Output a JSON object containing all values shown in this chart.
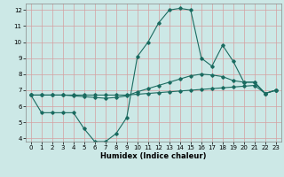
{
  "xlabel": "Humidex (Indice chaleur)",
  "bg_color": "#cce8e6",
  "grid_color": "#d4a0a0",
  "line_color": "#1a6b60",
  "xlim": [
    -0.5,
    23.5
  ],
  "ylim": [
    3.8,
    12.4
  ],
  "xticks": [
    0,
    1,
    2,
    3,
    4,
    5,
    6,
    7,
    8,
    9,
    10,
    11,
    12,
    13,
    14,
    15,
    16,
    17,
    18,
    19,
    20,
    21,
    22,
    23
  ],
  "yticks": [
    4,
    5,
    6,
    7,
    8,
    9,
    10,
    11,
    12
  ],
  "line1_x": [
    0,
    1,
    2,
    3,
    4,
    5,
    6,
    7,
    8,
    9,
    10,
    11,
    12,
    13,
    14,
    15,
    16,
    17,
    18,
    19,
    20,
    21,
    22,
    23
  ],
  "line1_y": [
    6.7,
    6.7,
    6.7,
    6.7,
    6.7,
    6.7,
    6.7,
    6.7,
    6.7,
    6.7,
    6.75,
    6.8,
    6.85,
    6.9,
    6.95,
    7.0,
    7.05,
    7.1,
    7.15,
    7.2,
    7.25,
    7.3,
    6.8,
    7.0
  ],
  "line2_x": [
    0,
    1,
    2,
    3,
    4,
    5,
    6,
    7,
    8,
    9,
    10,
    11,
    12,
    13,
    14,
    15,
    16,
    17,
    18,
    19,
    20,
    21,
    22,
    23
  ],
  "line2_y": [
    6.7,
    6.7,
    6.7,
    6.7,
    6.65,
    6.6,
    6.55,
    6.5,
    6.55,
    6.65,
    6.9,
    7.1,
    7.3,
    7.5,
    7.7,
    7.9,
    8.0,
    7.95,
    7.85,
    7.6,
    7.5,
    7.5,
    6.8,
    7.0
  ],
  "line3_x": [
    0,
    1,
    2,
    3,
    4,
    5,
    6,
    7,
    8,
    9,
    10,
    11,
    12,
    13,
    14,
    15,
    16,
    17,
    18,
    19,
    20,
    21,
    22,
    23
  ],
  "line3_y": [
    6.7,
    5.6,
    5.6,
    5.6,
    5.6,
    4.6,
    3.8,
    3.8,
    4.3,
    5.3,
    9.1,
    10.0,
    11.2,
    12.0,
    12.1,
    12.0,
    9.0,
    8.5,
    9.8,
    8.8,
    7.5,
    7.5,
    6.8,
    7.0
  ]
}
